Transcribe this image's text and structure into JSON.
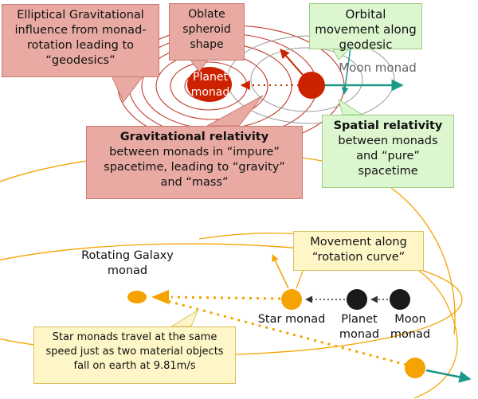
{
  "top": {
    "elliptical_callout": "Elliptical Gravitational influence from monad-rotation leading to “geodesics”",
    "oblate_callout": "Oblate spheroid shape",
    "orbital_callout": "Orbital movement along geodesic",
    "moon_label": "Moon monad",
    "planet_label": "Planet monad",
    "gravitational": {
      "title": "Gravitational relativity",
      "body": "between monads in “impure” spacetime, leading to “gravity” and “mass”"
    },
    "spatial": {
      "title": "Spatial relativity",
      "body": "between monads and “pure” spacetime"
    }
  },
  "bottom": {
    "galaxy_label": "Rotating Galaxy monad",
    "movement_callout": "Movement along “rotation curve”",
    "star_label": "Star monad",
    "planet_label": "Planet monad",
    "moon_label": "Moon monad",
    "star_note": "Star monads travel at the same speed just as two material objects fall on earth at 9.81m/s"
  },
  "colors": {
    "red_fill": "#e8aaa2",
    "planet_red": "#cc2200",
    "teal_arrow": "#1a9988",
    "orange": "#f4a300",
    "ellipse_red": "#c0392b",
    "green_fill": "#dcf7cf",
    "yellow_fill": "#fff6c8"
  }
}
